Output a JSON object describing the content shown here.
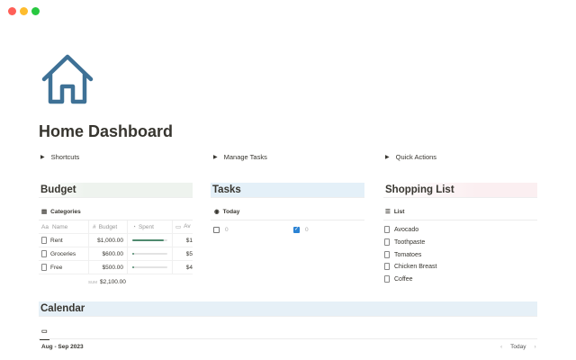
{
  "window": {
    "controls": [
      {
        "name": "close",
        "color": "#ff5f57"
      },
      {
        "name": "minimize",
        "color": "#febc2e"
      },
      {
        "name": "maximize",
        "color": "#28c840"
      }
    ]
  },
  "page": {
    "icon": "house-icon",
    "icon_color": "#3e7196",
    "title": "Home Dashboard"
  },
  "toggles": [
    "Shortcuts",
    "Manage Tasks",
    "Quick Actions"
  ],
  "budget": {
    "heading": "Budget",
    "heading_bg": "#eef3ee",
    "tab": "Categories",
    "columns": [
      "Name",
      "Budget",
      "Spent",
      "Av"
    ],
    "rows": [
      {
        "name": "Rent",
        "budget": "$1,000.00",
        "spent": 0.9,
        "avail": "$1"
      },
      {
        "name": "Groceries",
        "budget": "$600.00",
        "spent": 0.05,
        "avail": "$5"
      },
      {
        "name": "Free",
        "budget": "$500.00",
        "spent": 0.05,
        "avail": "$4"
      }
    ],
    "sum_label": "SUM",
    "total": "$2,100.00"
  },
  "tasks": {
    "heading": "Tasks",
    "heading_bg": "#e4f0f8",
    "tab": "Today",
    "groups": [
      {
        "checked": false,
        "count": "0"
      },
      {
        "checked": true,
        "count": "0"
      }
    ]
  },
  "shopping": {
    "heading": "Shopping List",
    "heading_bg": "#fbeff1",
    "tab": "List",
    "items": [
      "Avocado",
      "Toothpaste",
      "Tomatoes",
      "Chicken Breast",
      "Coffee"
    ]
  },
  "calendar": {
    "heading": "Calendar",
    "heading_bg": "#e6f0f7",
    "range": "Aug - Sep 2023",
    "today": "Today"
  }
}
